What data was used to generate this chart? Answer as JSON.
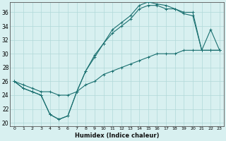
{
  "xlabel": "Humidex (Indice chaleur)",
  "bg_color": "#d8f0f0",
  "grid_color": "#b0d8d8",
  "line_color": "#1a7070",
  "xlim": [
    -0.5,
    23.5
  ],
  "ylim": [
    19.5,
    37.5
  ],
  "xticks": [
    0,
    1,
    2,
    3,
    4,
    5,
    6,
    7,
    8,
    9,
    10,
    11,
    12,
    13,
    14,
    15,
    16,
    17,
    18,
    19,
    20,
    21,
    22,
    23
  ],
  "yticks": [
    20,
    22,
    24,
    26,
    28,
    30,
    32,
    34,
    36
  ],
  "line1_x": [
    0,
    1,
    2,
    3,
    4,
    5,
    6,
    7,
    8,
    9,
    10,
    11,
    12,
    13,
    14,
    15,
    16,
    17,
    18,
    19,
    20,
    21,
    22,
    23
  ],
  "line1_y": [
    26.0,
    25.0,
    24.5,
    24.0,
    21.2,
    20.5,
    21.0,
    24.5,
    27.5,
    29.5,
    31.5,
    33.5,
    34.5,
    35.5,
    37.0,
    37.5,
    37.2,
    37.0,
    36.5,
    36.0,
    36.0,
    30.5,
    33.5,
    30.5
  ],
  "line2_x": [
    0,
    1,
    2,
    3,
    4,
    5,
    6,
    7,
    8,
    9,
    10,
    11,
    12,
    13,
    14,
    15,
    16,
    17,
    18,
    19,
    20,
    21,
    22,
    23
  ],
  "line2_y": [
    26.0,
    25.0,
    24.5,
    24.0,
    21.2,
    20.5,
    21.0,
    24.5,
    27.5,
    29.8,
    31.5,
    33.0,
    34.0,
    35.0,
    36.5,
    37.0,
    37.0,
    36.5,
    36.5,
    35.8,
    35.5,
    30.5,
    30.5,
    30.5
  ],
  "line3_x": [
    0,
    1,
    2,
    3,
    4,
    5,
    6,
    7,
    8,
    9,
    10,
    11,
    12,
    13,
    14,
    15,
    16,
    17,
    18,
    19,
    20,
    21,
    22,
    23
  ],
  "line3_y": [
    26.0,
    25.5,
    25.0,
    24.5,
    24.5,
    24.0,
    24.0,
    24.5,
    25.5,
    26.0,
    27.0,
    27.5,
    28.0,
    28.5,
    29.0,
    29.5,
    30.0,
    30.0,
    30.0,
    30.5,
    30.5,
    30.5,
    30.5,
    30.5
  ]
}
